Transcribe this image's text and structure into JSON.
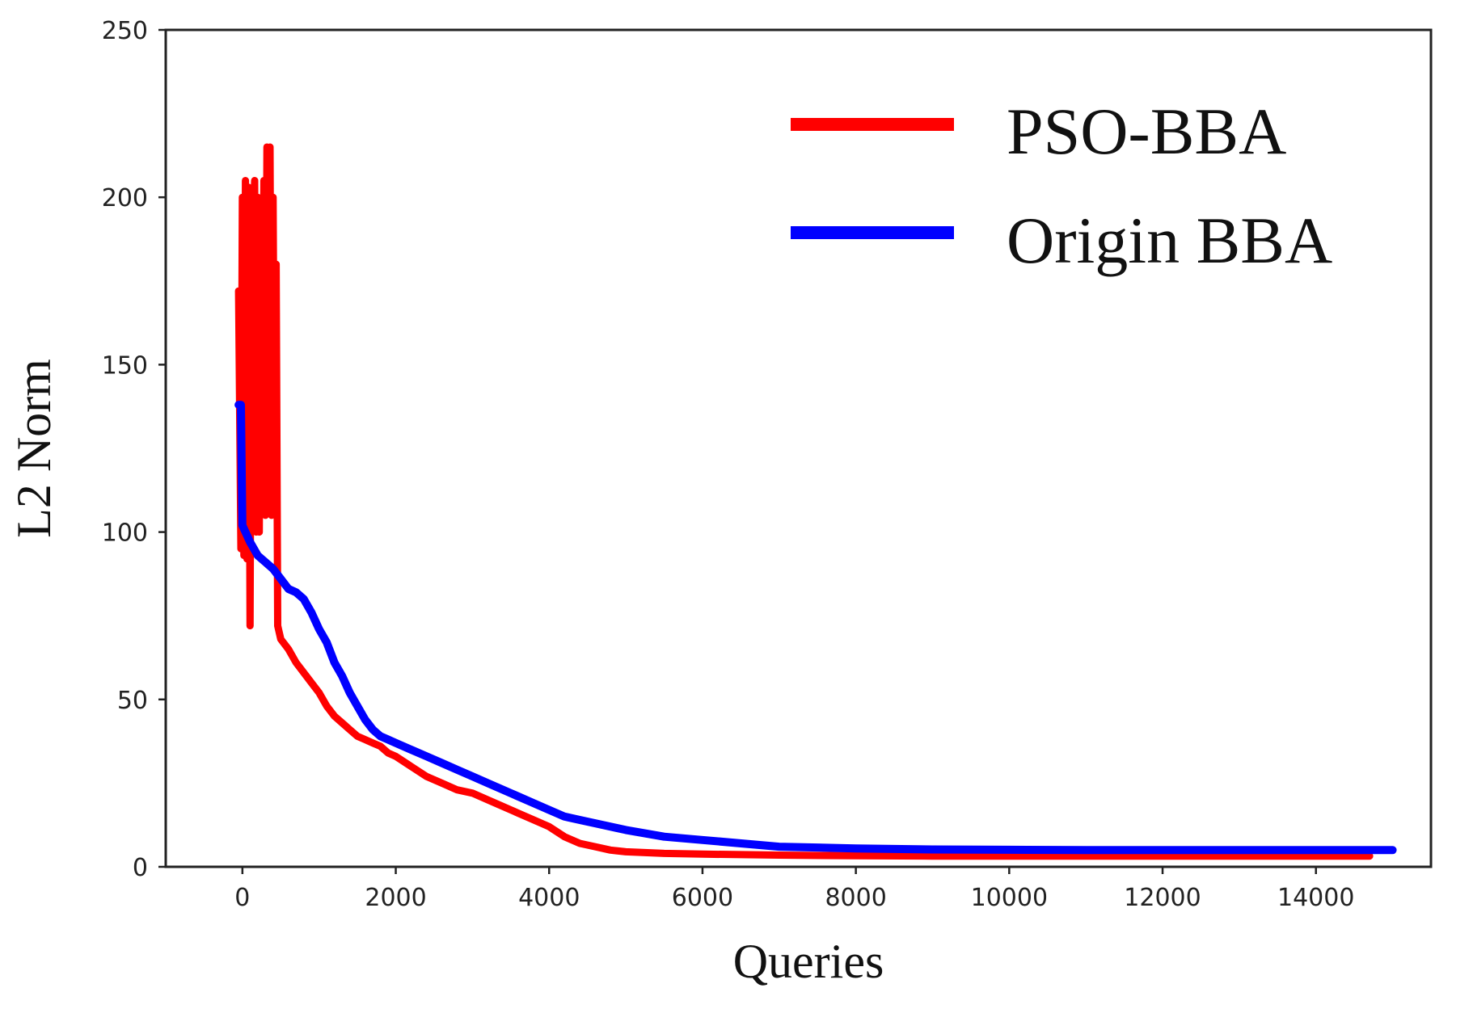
{
  "chart_data": {
    "type": "line",
    "title": "",
    "xlabel": "Queries",
    "ylabel": "L2 Norm",
    "xlim": [
      -1000,
      15500
    ],
    "ylim": [
      0,
      250
    ],
    "xticks": [
      0,
      2000,
      4000,
      6000,
      8000,
      10000,
      12000,
      14000
    ],
    "yticks": [
      0,
      50,
      100,
      150,
      200,
      250
    ],
    "grid": false,
    "legend_position": "top-right",
    "series": [
      {
        "name": "PSO-BBA",
        "color": "#ff0000",
        "x": [
          -50,
          -20,
          0,
          20,
          40,
          60,
          80,
          100,
          120,
          140,
          160,
          180,
          200,
          220,
          240,
          260,
          280,
          300,
          320,
          340,
          360,
          380,
          400,
          420,
          440,
          460,
          500,
          600,
          700,
          800,
          900,
          1000,
          1100,
          1200,
          1300,
          1400,
          1500,
          1600,
          1700,
          1800,
          1900,
          2000,
          2200,
          2400,
          2600,
          2800,
          3000,
          3200,
          3400,
          3600,
          3800,
          4000,
          4200,
          4400,
          4600,
          4800,
          5000,
          5500,
          6000,
          7000,
          8000,
          9000,
          10000,
          11000,
          12000,
          13000,
          14000,
          14700
        ],
        "y": [
          172,
          95,
          200,
          93,
          205,
          92,
          203,
          72,
          201,
          190,
          205,
          100,
          200,
          100,
          195,
          110,
          205,
          105,
          215,
          110,
          215,
          105,
          200,
          110,
          180,
          72,
          68,
          65,
          61,
          58,
          55,
          52,
          48,
          45,
          43,
          41,
          39,
          38,
          37,
          36,
          34,
          33,
          30,
          27,
          25,
          23,
          22,
          20,
          18,
          16,
          14,
          12,
          9,
          7,
          6,
          5,
          4.5,
          4,
          3.8,
          3.5,
          3.3,
          3.2,
          3.2,
          3.2,
          3.2,
          3.2,
          3.2,
          3.2
        ]
      },
      {
        "name": "Origin BBA",
        "color": "#0000ff",
        "x": [
          -50,
          -20,
          0,
          100,
          200,
          300,
          400,
          500,
          600,
          700,
          800,
          900,
          1000,
          1100,
          1200,
          1300,
          1400,
          1500,
          1600,
          1700,
          1800,
          1900,
          2000,
          2200,
          2400,
          2600,
          2800,
          3000,
          3200,
          3400,
          3600,
          3800,
          4000,
          4200,
          4400,
          4600,
          4800,
          5000,
          5500,
          6000,
          7000,
          8000,
          9000,
          10000,
          11000,
          12000,
          13000,
          14000,
          15000
        ],
        "y": [
          138,
          138,
          102,
          97,
          93,
          91,
          89,
          86,
          83,
          82,
          80,
          76,
          71,
          67,
          61,
          57,
          52,
          48,
          44,
          41,
          39,
          38,
          37,
          35,
          33,
          31,
          29,
          27,
          25,
          23,
          21,
          19,
          17,
          15,
          14,
          13,
          12,
          11,
          9,
          8,
          6,
          5.5,
          5.2,
          5.1,
          5,
          5,
          5,
          5,
          5
        ]
      }
    ]
  }
}
